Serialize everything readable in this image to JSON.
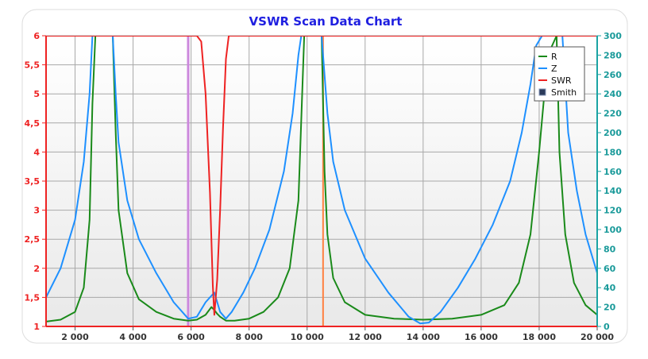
{
  "chart_data": {
    "type": "line",
    "title": "VSWR Scan Data Chart",
    "x_ticks": [
      2000,
      4000,
      6000,
      8000,
      10000,
      12000,
      14000,
      16000,
      18000,
      20000
    ],
    "x_tick_labels": [
      "2 000",
      "4 000",
      "6 000",
      "8 000",
      "10 000",
      "12 000",
      "14 000",
      "16 000",
      "18 000",
      "20 000"
    ],
    "xlim": [
      1000,
      20000
    ],
    "y_left_ticks": [
      1,
      1.5,
      2,
      2.5,
      3,
      3.5,
      4,
      4.5,
      5,
      5.5,
      6
    ],
    "y_left_tick_labels": [
      "1",
      "1,5",
      "2",
      "2,5",
      "3",
      "3,5",
      "4",
      "4,5",
      "5",
      "5,5",
      "6"
    ],
    "y_left_lim": [
      1,
      6
    ],
    "y_right_ticks": [
      0,
      20,
      40,
      60,
      80,
      100,
      120,
      140,
      160,
      180,
      200,
      220,
      240,
      260,
      280,
      300
    ],
    "y_right_lim": [
      0,
      300
    ],
    "grid": true,
    "legend_position": "top-right",
    "legend": [
      {
        "label": "R",
        "color": "#1a8a1a",
        "marker": "line"
      },
      {
        "label": "Z",
        "color": "#1e90ff",
        "marker": "line"
      },
      {
        "label": "SWR",
        "color": "#ee2222",
        "marker": "line"
      },
      {
        "label": "Smith",
        "color": "#2a3a5a",
        "marker": "box"
      }
    ],
    "markers": [
      {
        "x": 5900,
        "color": "#cc88dd"
      },
      {
        "x": 10550,
        "color": "#ff8040"
      }
    ],
    "series": [
      {
        "name": "R",
        "axis": "right",
        "color": "#1a8a1a",
        "x": [
          1000,
          1500,
          2000,
          2300,
          2500,
          2600,
          2700,
          3300,
          3400,
          3500,
          3800,
          4200,
          4800,
          5400,
          5900,
          6200,
          6500,
          6700,
          6800,
          6900,
          7000,
          7200,
          7500,
          8000,
          8500,
          9000,
          9400,
          9700,
          9900,
          10500,
          10600,
          10700,
          10900,
          11300,
          12000,
          13000,
          14000,
          15000,
          16000,
          16800,
          17300,
          17700,
          18000,
          18300,
          18600,
          18700,
          18900,
          19200,
          19600,
          20000
        ],
        "y": [
          5,
          7,
          15,
          40,
          110,
          230,
          300,
          300,
          200,
          120,
          55,
          28,
          15,
          8,
          6,
          7,
          12,
          20,
          17,
          13,
          10,
          6,
          6,
          8,
          15,
          30,
          60,
          130,
          300,
          300,
          160,
          95,
          50,
          25,
          12,
          8,
          7,
          8,
          12,
          22,
          45,
          95,
          180,
          280,
          300,
          180,
          95,
          45,
          22,
          12
        ]
      },
      {
        "name": "Z",
        "axis": "right",
        "color": "#1e90ff",
        "x": [
          1000,
          1500,
          2000,
          2300,
          2500,
          2600,
          3300,
          3400,
          3500,
          3800,
          4200,
          4800,
          5400,
          5900,
          6200,
          6500,
          6800,
          7000,
          7200,
          7400,
          7800,
          8200,
          8700,
          9200,
          9500,
          9700,
          9800,
          10500,
          10700,
          10900,
          11300,
          12000,
          12800,
          13500,
          13900,
          14200,
          14600,
          15200,
          15800,
          16400,
          17000,
          17400,
          17700,
          17900,
          18100,
          18200,
          18800,
          19000,
          19300,
          19600,
          20000
        ],
        "y": [
          30,
          60,
          110,
          170,
          240,
          300,
          300,
          240,
          190,
          130,
          90,
          55,
          25,
          8,
          10,
          25,
          35,
          15,
          8,
          15,
          35,
          60,
          100,
          160,
          220,
          280,
          300,
          300,
          220,
          170,
          120,
          70,
          35,
          10,
          3,
          4,
          15,
          40,
          70,
          105,
          150,
          200,
          250,
          290,
          300,
          300,
          300,
          200,
          140,
          95,
          55
        ]
      },
      {
        "name": "SWR",
        "axis": "left",
        "color": "#ee2222",
        "x": [
          1000,
          5900,
          6050,
          6200,
          6350,
          6500,
          6650,
          6750,
          6800,
          6900,
          7000,
          7100,
          7200,
          7300,
          7400,
          20000
        ],
        "y": [
          6,
          6,
          6,
          6,
          5.9,
          5,
          3.3,
          1.7,
          1.2,
          1.8,
          3,
          4.4,
          5.6,
          6,
          6,
          6
        ]
      }
    ]
  }
}
